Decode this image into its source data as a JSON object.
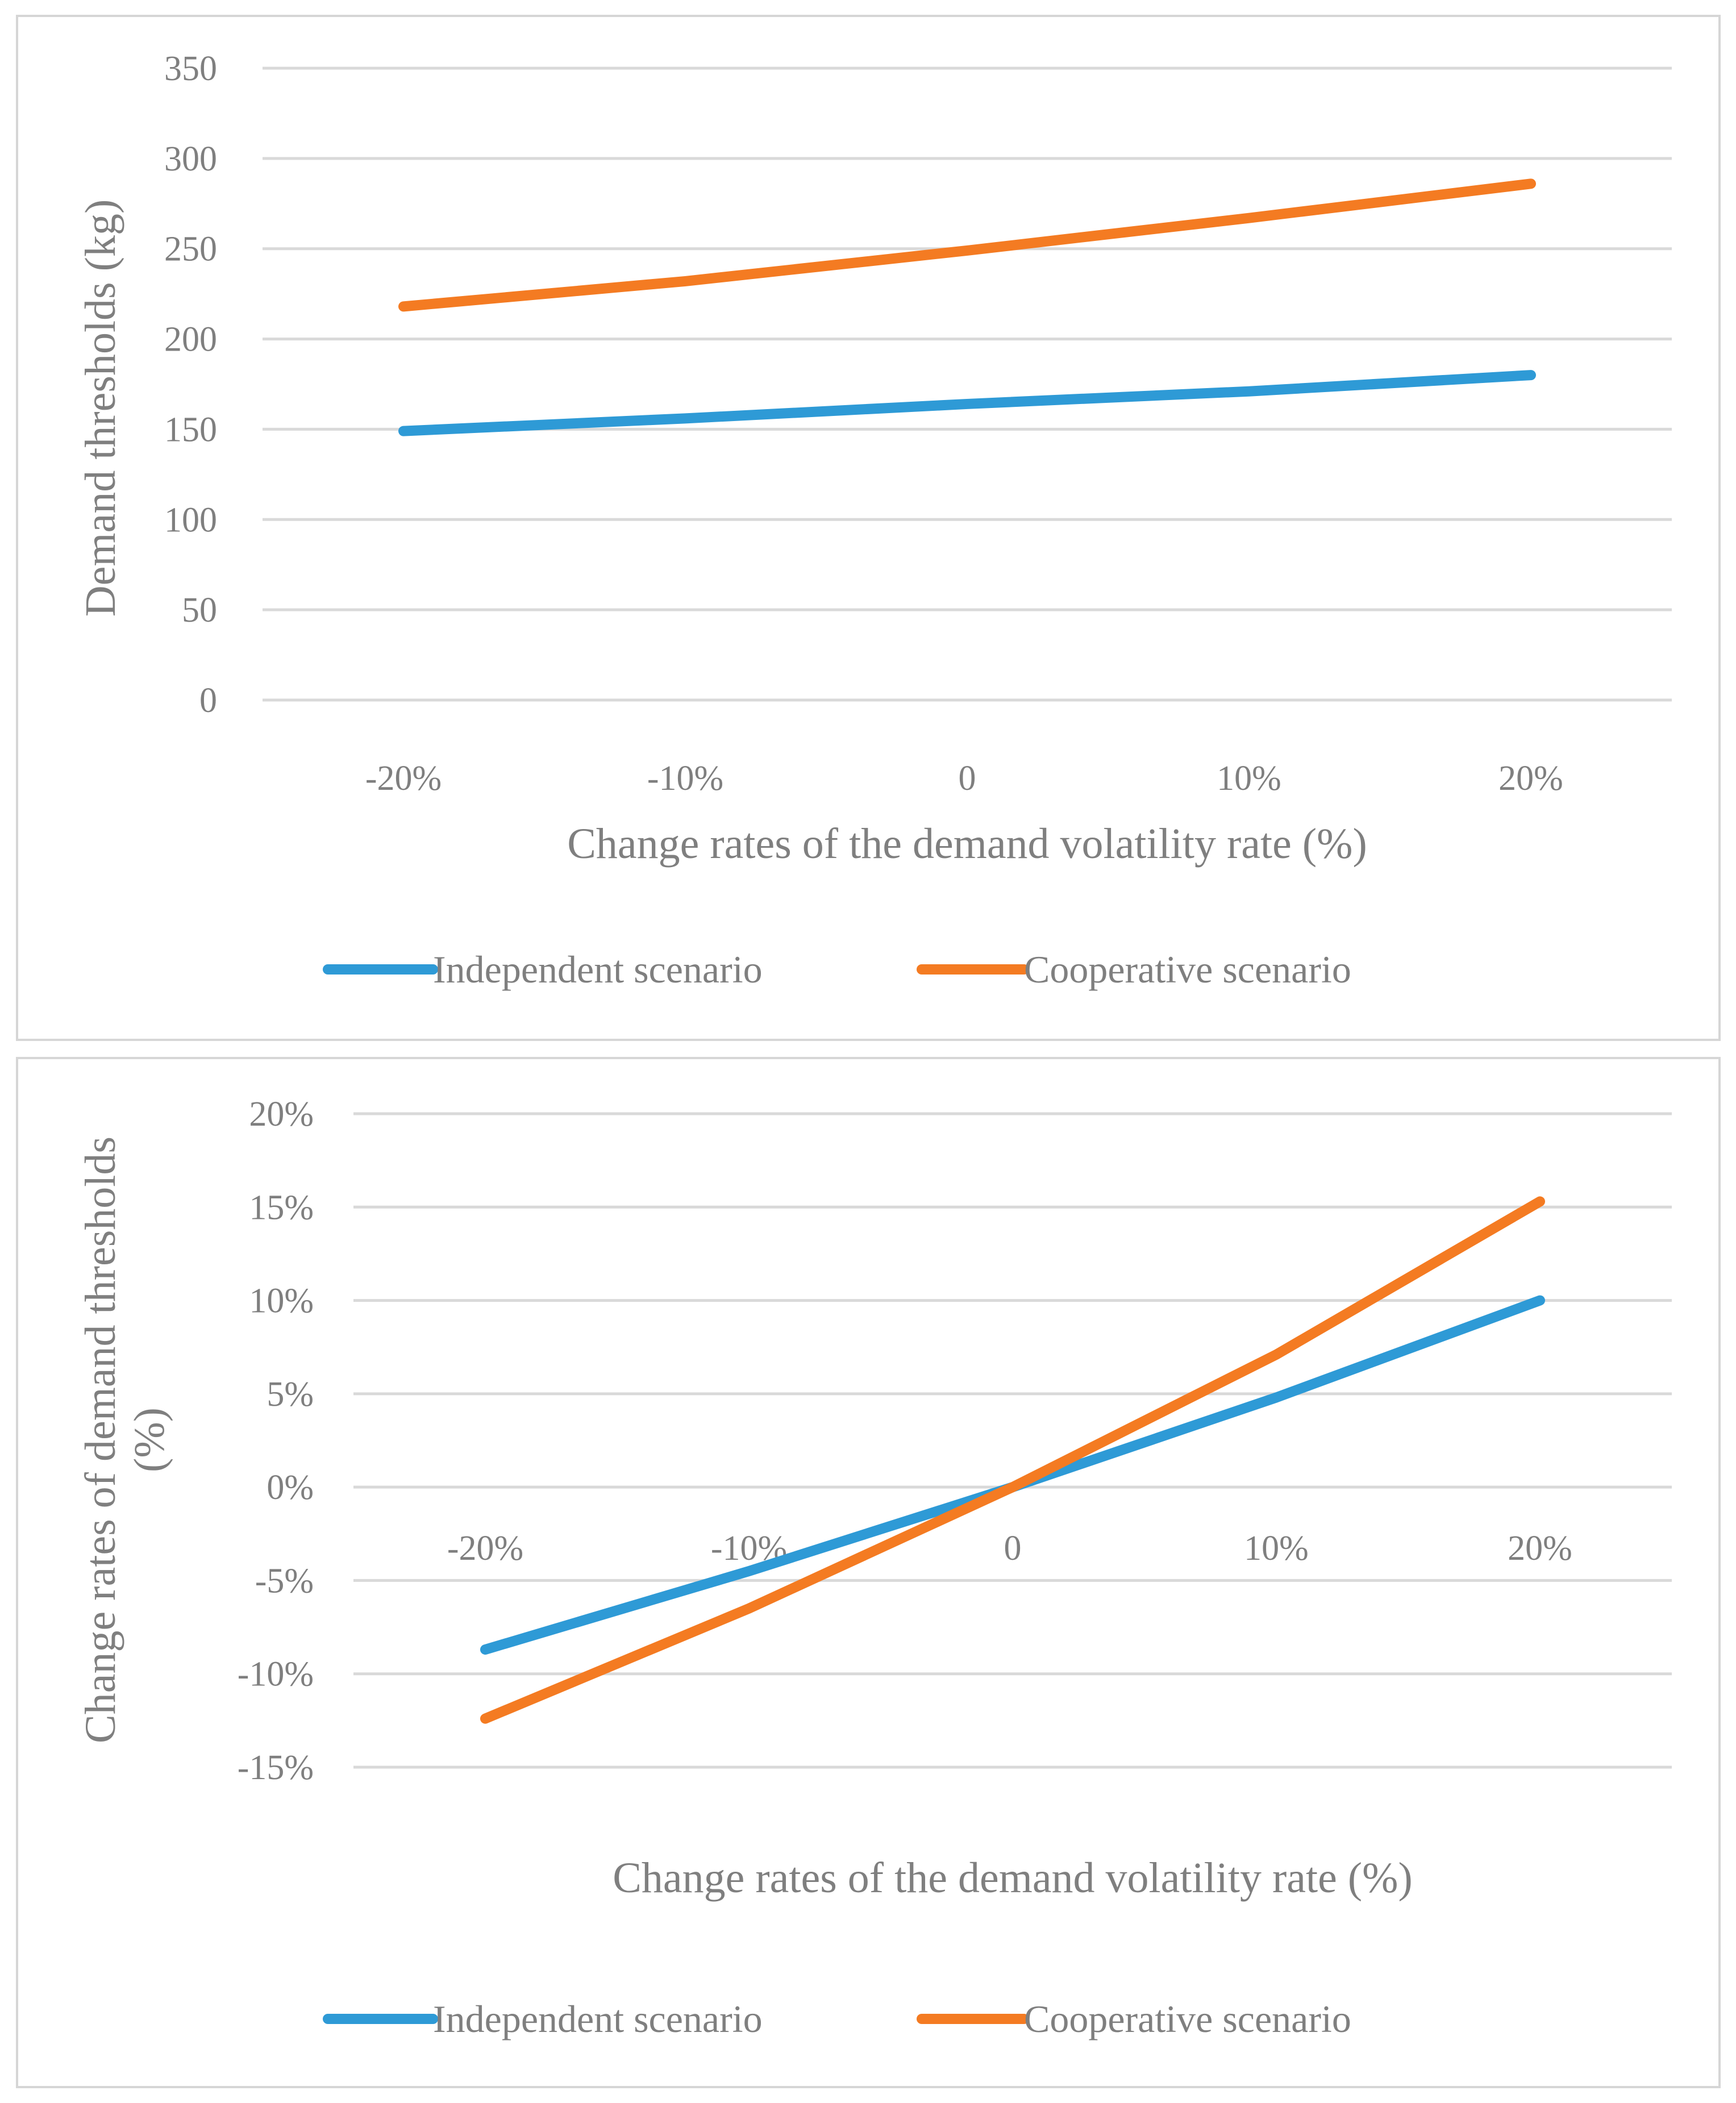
{
  "chart_data": [
    {
      "type": "line",
      "categories": [
        "-20%",
        "-10%",
        "0",
        "10%",
        "20%"
      ],
      "series": [
        {
          "name": "Independent scenario",
          "color": "#2e9ad6",
          "values": [
            149,
            156,
            164,
            171,
            180
          ]
        },
        {
          "name": "Cooperative scenario",
          "color": "#f47b22",
          "values": [
            218,
            232,
            249,
            267,
            286
          ]
        }
      ],
      "xlabel": "Change rates of the demand volatility rate (%)",
      "ylabel": "Demand thresholds (kg)",
      "ylim": [
        0,
        350
      ],
      "yticks": [
        0,
        50,
        100,
        150,
        200,
        250,
        300,
        350
      ],
      "ytick_labels": [
        "0",
        "50",
        "100",
        "150",
        "200",
        "250",
        "300",
        "350"
      ],
      "grid": true,
      "legend": "bottom"
    },
    {
      "type": "line",
      "categories": [
        "-20%",
        "-10%",
        "0",
        "10%",
        "20%"
      ],
      "series": [
        {
          "name": "Independent scenario",
          "color": "#2e9ad6",
          "values": [
            -8.7,
            -4.5,
            0,
            4.8,
            10.0
          ]
        },
        {
          "name": "Cooperative scenario",
          "color": "#f47b22",
          "values": [
            -12.4,
            -6.5,
            0,
            7.1,
            15.3
          ]
        }
      ],
      "xlabel": "Change rates of the demand volatility rate (%)",
      "ylabel": "Change rates of demand thresholds (%)",
      "ylim": [
        -15,
        20
      ],
      "yticks": [
        -15,
        -10,
        -5,
        0,
        5,
        10,
        15,
        20
      ],
      "ytick_labels": [
        "-15%",
        "-10%",
        "-5%",
        "0%",
        "5%",
        "10%",
        "15%",
        "20%"
      ],
      "grid": true,
      "legend": "bottom"
    }
  ]
}
